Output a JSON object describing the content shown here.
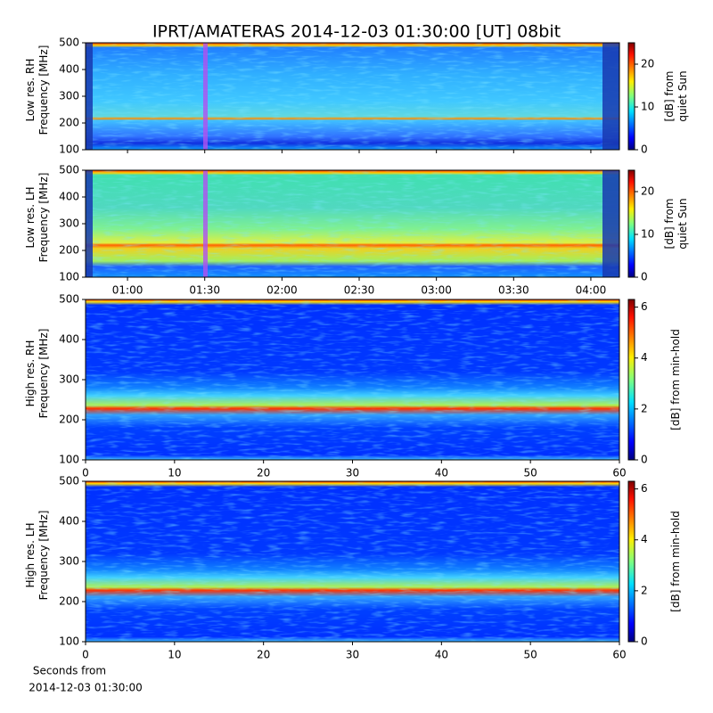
{
  "chart_data": [
    {
      "type": "heatmap",
      "title": "IPRT/AMATERAS 2014-12-03 01:30:00 [UT]   08bit",
      "ylabel": [
        "Low res. RH",
        "Frequency [MHz]"
      ],
      "ylim": [
        100,
        500
      ],
      "yticks": [
        100,
        200,
        300,
        400,
        500
      ],
      "xlim": [
        43.7,
        251.1
      ],
      "xticks": [
        60,
        90,
        120,
        150,
        180,
        210,
        240
      ],
      "colorbar_label": [
        "[dB] from",
        "quiet Sun"
      ],
      "clim": [
        0,
        25
      ],
      "cticks": [
        0,
        10,
        20
      ]
    },
    {
      "type": "heatmap",
      "ylabel": [
        "Low res. LH",
        "Frequency [MHz]"
      ],
      "ylim": [
        100,
        500
      ],
      "yticks": [
        100,
        200,
        300,
        400,
        500
      ],
      "xlim": [
        43.7,
        251.1
      ],
      "xticks": [
        {
          "value": 60,
          "label": "01:00"
        },
        {
          "value": 90,
          "label": "01:30"
        },
        {
          "value": 120,
          "label": "02:00"
        },
        {
          "value": 150,
          "label": "02:30"
        },
        {
          "value": 180,
          "label": "03:00"
        },
        {
          "value": 210,
          "label": "03:30"
        },
        {
          "value": 240,
          "label": "04:00"
        }
      ],
      "colorbar_label": [
        "[dB] from",
        "quiet Sun"
      ],
      "clim": [
        0,
        25
      ],
      "cticks": [
        0,
        10,
        20
      ]
    },
    {
      "type": "heatmap",
      "ylabel": [
        "High res. RH",
        "Frequency [MHz]"
      ],
      "ylim": [
        100,
        500
      ],
      "yticks": [
        100,
        200,
        300,
        400,
        500
      ],
      "xlim": [
        0,
        60
      ],
      "xticks": [
        0,
        10,
        20,
        30,
        40,
        50,
        60
      ],
      "colorbar_label": [
        "[dB] from min-hold"
      ],
      "clim": [
        0,
        6.3
      ],
      "cticks": [
        0,
        2,
        4,
        6
      ]
    },
    {
      "type": "heatmap",
      "ylabel": [
        "High res. LH",
        "Frequency [MHz]"
      ],
      "ylim": [
        100,
        500
      ],
      "yticks": [
        100,
        200,
        300,
        400,
        500
      ],
      "xlim": [
        0,
        60
      ],
      "xticks": [
        0,
        10,
        20,
        30,
        40,
        50,
        60
      ],
      "xlabel": [
        "Seconds from",
        "2014-12-03 01:30:00"
      ],
      "colorbar_label": [
        "[dB] from min-hold"
      ],
      "clim": [
        0,
        6.3
      ],
      "cticks": [
        0,
        2,
        4,
        6
      ]
    }
  ]
}
